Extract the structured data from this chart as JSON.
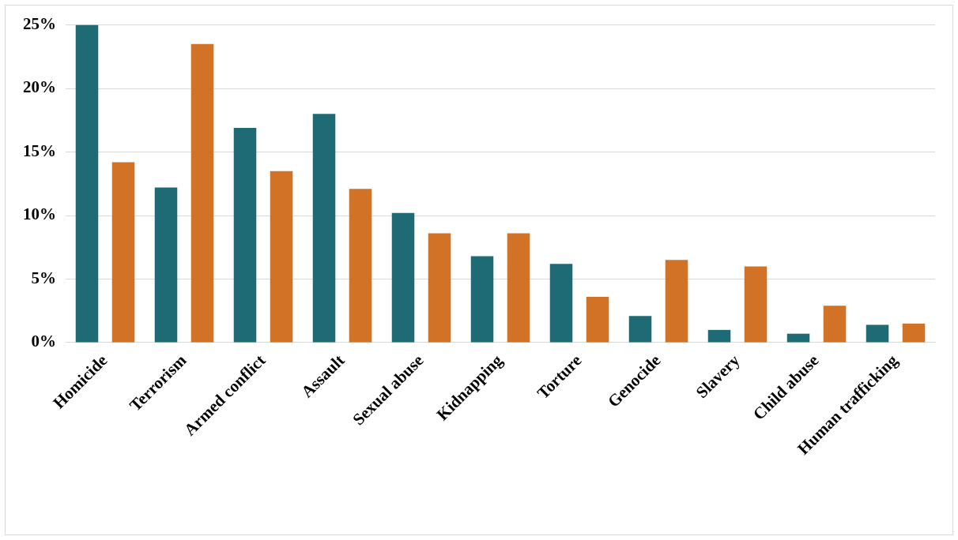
{
  "chart_data": {
    "type": "bar",
    "categories": [
      "Homicide",
      "Terrorism",
      "Armed conflict",
      "Assault",
      "Sexual abuse",
      "Kidnapping",
      "Torture",
      "Genocide",
      "Slavery",
      "Child abuse",
      "Human trafficking"
    ],
    "series": [
      {
        "color": "#1f6b75",
        "values": [
          25,
          12.2,
          16.9,
          18.0,
          10.2,
          6.8,
          6.2,
          2.1,
          1.0,
          0.7,
          1.4
        ]
      },
      {
        "color": "#d27226",
        "values": [
          14.2,
          23.5,
          13.5,
          12.1,
          8.6,
          8.6,
          3.6,
          6.5,
          6.0,
          2.9,
          1.5
        ]
      }
    ],
    "ylim": [
      0,
      25
    ],
    "yticks": [
      {
        "value": 0,
        "label": "0%"
      },
      {
        "value": 5,
        "label": "5%"
      },
      {
        "value": 10,
        "label": "10%"
      },
      {
        "value": 15,
        "label": "15%"
      },
      {
        "value": 20,
        "label": "20%"
      },
      {
        "value": 25,
        "label": "25%"
      }
    ],
    "grid": "y",
    "legend": false
  }
}
